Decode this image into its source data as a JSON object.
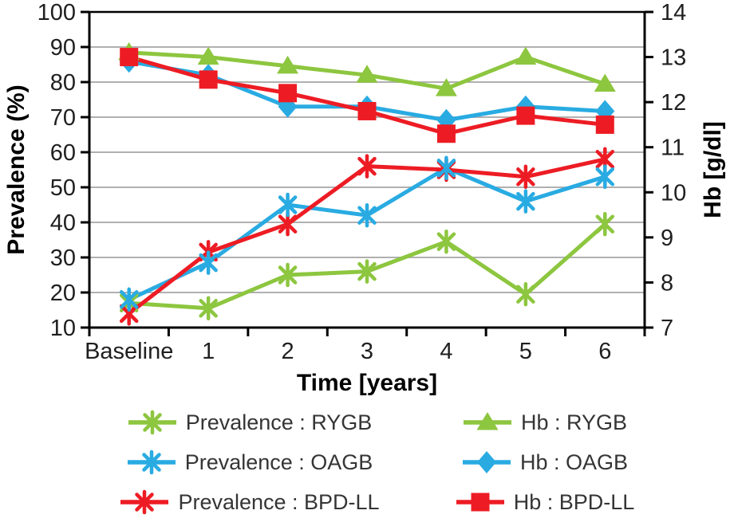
{
  "chart_data": {
    "type": "line",
    "categories": [
      "Baseline",
      "1",
      "2",
      "3",
      "4",
      "5",
      "6"
    ],
    "x_axis": {
      "title": "Time [years]"
    },
    "left_axis": {
      "title": "Prevalence (%)",
      "min": 10,
      "max": 100,
      "step": 10
    },
    "right_axis": {
      "title": "Hb [g/dl]",
      "min": 7,
      "max": 14,
      "step": 1
    },
    "grid": true,
    "grid_color": "#b0b0b0",
    "axis_color": "#000000",
    "legend_position": "bottom",
    "series": [
      {
        "name": "Prevalence : RYGB",
        "axis": "left",
        "color": "#8DC63F",
        "marker": "asterisk",
        "values": [
          17,
          15.5,
          25,
          26,
          34.5,
          19.5,
          39.5
        ]
      },
      {
        "name": "Prevalence : OAGB",
        "axis": "left",
        "color": "#29ABE2",
        "marker": "asterisk",
        "values": [
          18,
          28.5,
          45,
          42,
          55.5,
          46,
          53
        ]
      },
      {
        "name": "Prevalence : BPD-LL",
        "axis": "left",
        "color": "#ED1C24",
        "marker": "asterisk",
        "values": [
          14,
          31.5,
          39.5,
          56,
          55,
          53,
          58
        ]
      },
      {
        "name": "Hb : RYGB",
        "axis": "right",
        "color": "#8DC63F",
        "marker": "triangle",
        "values": [
          13.1,
          13.0,
          12.8,
          12.6,
          12.3,
          13.0,
          12.4
        ]
      },
      {
        "name": "Hb : OAGB",
        "axis": "right",
        "color": "#29ABE2",
        "marker": "diamond",
        "values": [
          12.9,
          12.6,
          11.9,
          11.9,
          11.6,
          11.9,
          11.8
        ]
      },
      {
        "name": "Hb : BPD-LL",
        "axis": "right",
        "color": "#ED1C24",
        "marker": "square",
        "values": [
          13.0,
          12.5,
          12.2,
          11.8,
          11.3,
          11.7,
          11.5
        ]
      }
    ]
  }
}
